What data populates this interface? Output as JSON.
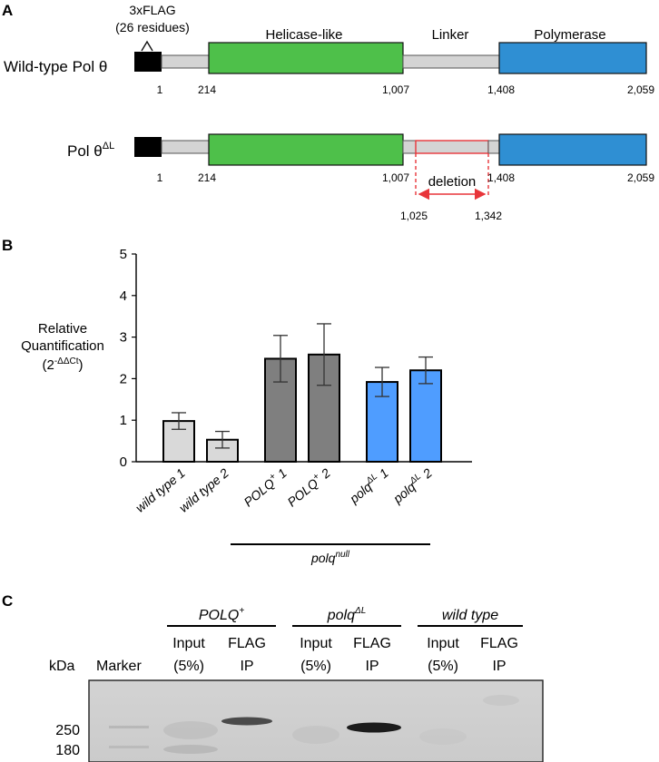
{
  "panels": {
    "A": {
      "letter": "A",
      "flag_line1": "3xFLAG",
      "flag_line2": "(26 residues)",
      "construct_wt": "Wild-type Pol θ",
      "construct_dl": "Pol θ",
      "construct_dl_sup": "ΔL",
      "domains": {
        "helicase": "Helicase-like",
        "linker": "Linker",
        "polymerase": "Polymerase"
      },
      "positions_wt": [
        "1",
        "214",
        "1,007",
        "1,408",
        "2,059"
      ],
      "positions_dl": [
        "1",
        "214",
        "1,007",
        "1,408",
        "2,059"
      ],
      "deletion_label": "deletion",
      "deletion_range": [
        "1,025",
        "1,342"
      ],
      "colors": {
        "helicase": "#4ec04a",
        "linker": "#d4d4d4",
        "polymerase": "#2f8fd3",
        "flag": "#000000",
        "deletion_box": "#e8353a"
      }
    },
    "B": {
      "letter": "B",
      "group_label": "polq",
      "group_label_sup": "null"
    },
    "C": {
      "letter": "C",
      "kda_label": "kDa",
      "marker_label": "Marker",
      "groups": [
        {
          "name": "POLQ",
          "sup": "+"
        },
        {
          "name": "polq",
          "sup": "ΔL"
        },
        {
          "name": "wild type",
          "sup": ""
        }
      ],
      "lane_input_top": "Input",
      "lane_input_bottom": "(5%)",
      "lane_ip_top": "FLAG",
      "lane_ip_bottom": "IP",
      "mw_markers": [
        "250",
        "180"
      ]
    }
  },
  "chart_data": {
    "type": "bar",
    "ylabel": "Relative Quantification (2^-ΔΔCt)",
    "ylabel_lines": [
      "Relative",
      "Quantification"
    ],
    "ylabel_unit_base": "(2",
    "ylabel_unit_sup": "-ΔΔCt",
    "ylabel_unit_end": ")",
    "ylim": [
      0,
      5
    ],
    "yticks": [
      "0",
      "1",
      "2",
      "3",
      "4",
      "5"
    ],
    "categories": [
      {
        "base": "wild type 1",
        "sup": "",
        "tail": ""
      },
      {
        "base": "wild type 2",
        "sup": "",
        "tail": ""
      },
      {
        "base": "POLQ",
        "sup": "+",
        "tail": " 1"
      },
      {
        "base": "POLQ",
        "sup": "+",
        "tail": " 2"
      },
      {
        "base": "polq",
        "sup": "ΔL",
        "tail": " 1"
      },
      {
        "base": "polq",
        "sup": "ΔL",
        "tail": " 2"
      }
    ],
    "values": [
      0.98,
      0.53,
      2.48,
      2.58,
      1.92,
      2.2
    ],
    "errors": [
      0.2,
      0.2,
      0.56,
      0.74,
      0.35,
      0.32
    ],
    "bar_colors": [
      "#d9d9d9",
      "#d9d9d9",
      "#7f7f7f",
      "#7f7f7f",
      "#4f9dff",
      "#4f9dff"
    ]
  }
}
